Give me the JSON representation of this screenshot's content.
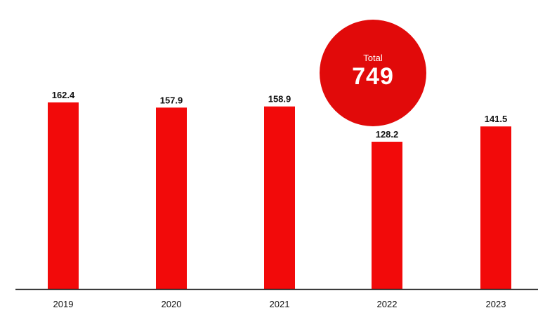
{
  "colors": {
    "bar": "#f20a0a",
    "bar_dark": "#c80808",
    "axis": "#222222",
    "badge": "#e10a0a"
  },
  "total": {
    "label": "Total",
    "value": "749"
  },
  "chart_data": {
    "type": "bar",
    "categories": [
      "2019",
      "2020",
      "2021",
      "2022",
      "2023"
    ],
    "values": [
      162.4,
      157.9,
      158.9,
      128.2,
      141.5
    ],
    "data_labels": [
      "162.4",
      "157.9",
      "158.9",
      "128.2",
      "141.5"
    ],
    "ylim": [
      0,
      162.4
    ],
    "grid": false,
    "legend": "none"
  }
}
